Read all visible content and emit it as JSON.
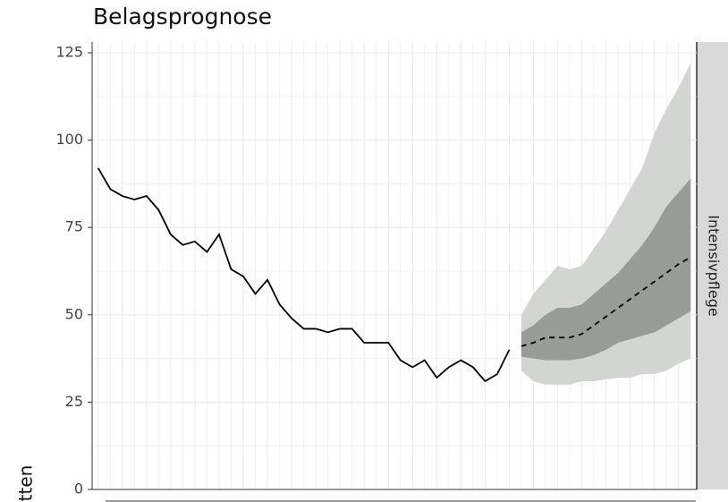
{
  "chart_data": {
    "type": "line",
    "title": "Belagsprognose",
    "ylabel": "tten",
    "facet": "Intensivpflege",
    "xlim": [
      -0.5,
      49.5
    ],
    "ylim": [
      0,
      125
    ],
    "yticks": [
      0,
      25,
      50,
      75,
      100,
      125
    ],
    "grid": true,
    "observed": {
      "color": "#000000",
      "values": [
        92,
        86,
        84,
        83,
        84,
        80,
        73,
        70,
        71,
        68,
        73,
        63,
        61,
        56,
        60,
        53,
        49,
        46,
        46,
        45,
        46,
        46,
        42,
        42,
        42,
        37,
        35,
        37,
        32,
        35,
        37,
        35,
        31,
        33,
        40,
        null,
        null,
        null,
        null,
        null,
        null,
        null,
        null,
        null,
        null,
        null,
        null,
        null,
        null,
        null
      ]
    },
    "forecast": {
      "color": "#000000",
      "values": [
        null,
        null,
        null,
        null,
        null,
        null,
        null,
        null,
        null,
        null,
        null,
        null,
        null,
        null,
        null,
        null,
        null,
        null,
        null,
        null,
        null,
        null,
        null,
        null,
        null,
        null,
        null,
        null,
        null,
        null,
        null,
        null,
        null,
        null,
        null,
        41,
        42,
        43.5,
        43.5,
        43.5,
        44.5,
        47,
        49.5,
        52,
        54.5,
        57,
        59.5,
        62,
        64.5,
        66.5
      ]
    },
    "inner_band": {
      "color": "#989c98",
      "lower": [
        null,
        null,
        null,
        null,
        null,
        null,
        null,
        null,
        null,
        null,
        null,
        null,
        null,
        null,
        null,
        null,
        null,
        null,
        null,
        null,
        null,
        null,
        null,
        null,
        null,
        null,
        null,
        null,
        null,
        null,
        null,
        null,
        null,
        null,
        null,
        38,
        37.5,
        37,
        37,
        37,
        37.5,
        38.5,
        40,
        42,
        43,
        44,
        45,
        47,
        49,
        51
      ],
      "upper": [
        null,
        null,
        null,
        null,
        null,
        null,
        null,
        null,
        null,
        null,
        null,
        null,
        null,
        null,
        null,
        null,
        null,
        null,
        null,
        null,
        null,
        null,
        null,
        null,
        null,
        null,
        null,
        null,
        null,
        null,
        null,
        null,
        null,
        null,
        null,
        45,
        47,
        50,
        52,
        52,
        53,
        56,
        59,
        62,
        66,
        70,
        75,
        81,
        85,
        89
      ]
    },
    "outer_band": {
      "color": "#d2d5d2",
      "lower": [
        null,
        null,
        null,
        null,
        null,
        null,
        null,
        null,
        null,
        null,
        null,
        null,
        null,
        null,
        null,
        null,
        null,
        null,
        null,
        null,
        null,
        null,
        null,
        null,
        null,
        null,
        null,
        null,
        null,
        null,
        null,
        null,
        null,
        null,
        null,
        34,
        31,
        30,
        30,
        30,
        31,
        31,
        31.5,
        32,
        32,
        33,
        33,
        34,
        36,
        37.5
      ],
      "upper": [
        null,
        null,
        null,
        null,
        null,
        null,
        null,
        null,
        null,
        null,
        null,
        null,
        null,
        null,
        null,
        null,
        null,
        null,
        null,
        null,
        null,
        null,
        null,
        null,
        null,
        null,
        null,
        null,
        null,
        null,
        null,
        null,
        null,
        null,
        null,
        50,
        56,
        60,
        64,
        63,
        64,
        69,
        74,
        80,
        86,
        92,
        102,
        109,
        115,
        122
      ]
    }
  }
}
